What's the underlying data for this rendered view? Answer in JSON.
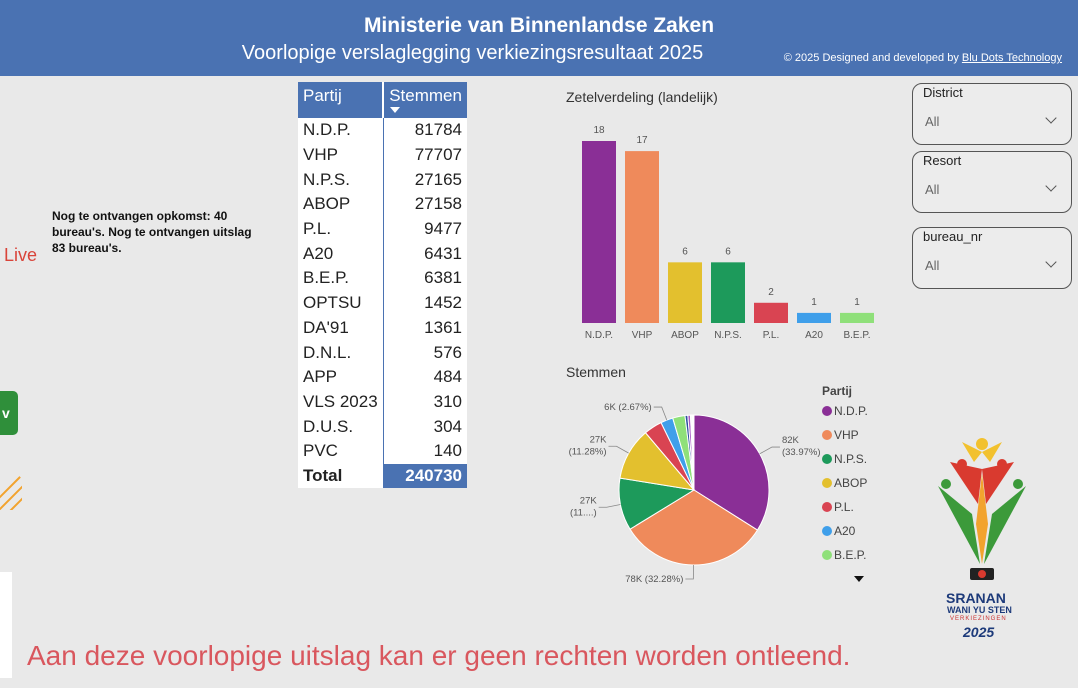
{
  "header": {
    "title": "Ministerie van Binnenlandse Zaken",
    "subtitle": "Voorlopige verslaglegging verkiezingsresultaat 2025",
    "copyright_prefix": "© 2025 Designed and developed by ",
    "copyright_link": "Blu Dots Technology"
  },
  "side_note": "Nog te ontvangen opkomst: 40 bureau's. Nog te ontvangen uitslag 83 bureau's.",
  "live_label": "Live",
  "green_button_label": "v",
  "disclaimer": "Aan deze voorlopige uitslag kan er geen rechten worden ontleend.",
  "table": {
    "col_party": "Partij",
    "col_votes": "Stemmen",
    "rows": [
      {
        "party": "N.D.P.",
        "votes": "81784"
      },
      {
        "party": "VHP",
        "votes": "77707"
      },
      {
        "party": "N.P.S.",
        "votes": "27165"
      },
      {
        "party": "ABOP",
        "votes": "27158"
      },
      {
        "party": "P.L.",
        "votes": "9477"
      },
      {
        "party": "A20",
        "votes": "6431"
      },
      {
        "party": "B.E.P.",
        "votes": "6381"
      },
      {
        "party": "OPTSU",
        "votes": "1452"
      },
      {
        "party": "DA'91",
        "votes": "1361"
      },
      {
        "party": "D.N.L.",
        "votes": "576"
      },
      {
        "party": "APP",
        "votes": "484"
      },
      {
        "party": "VLS 2023",
        "votes": "310"
      },
      {
        "party": "D.U.S.",
        "votes": "304"
      },
      {
        "party": "PVC",
        "votes": "140"
      }
    ],
    "total_label": "Total",
    "total_value": "240730"
  },
  "slicers": [
    {
      "label": "District",
      "value": "All"
    },
    {
      "label": "Resort",
      "value": "All"
    },
    {
      "label": "bureau_nr",
      "value": "All"
    }
  ],
  "chart_data": [
    {
      "type": "bar",
      "title": "Zetelverdeling (landelijk)",
      "categories": [
        "N.D.P.",
        "VHP",
        "ABOP",
        "N.P.S.",
        "P.L.",
        "A20",
        "B.E.P."
      ],
      "values": [
        18,
        17,
        6,
        6,
        2,
        1,
        1
      ],
      "colors": [
        "#8a2f96",
        "#ef8a5b",
        "#e3c02e",
        "#1d9a5b",
        "#d94452",
        "#3f9fea",
        "#8fe07a"
      ],
      "ylim": [
        0,
        18
      ]
    },
    {
      "type": "pie",
      "title": "Stemmen",
      "legend_title": "Partij",
      "categories": [
        "N.D.P.",
        "VHP",
        "N.P.S.",
        "ABOP",
        "P.L.",
        "A20",
        "B.E.P.",
        "OPTSU",
        "DA'91",
        "D.N.L.",
        "APP",
        "VLS 2023",
        "D.U.S.",
        "PVC"
      ],
      "values": [
        81784,
        77707,
        27165,
        27158,
        9477,
        6431,
        6381,
        1452,
        1361,
        576,
        484,
        310,
        304,
        140
      ],
      "colors": [
        "#8a2f96",
        "#ef8a5b",
        "#1d9a5b",
        "#e3c02e",
        "#d94452",
        "#3f9fea",
        "#8fe07a",
        "#2d4fa0",
        "#a85dc4",
        "#6b6b6b",
        "#c7a43a",
        "#3a6c8f",
        "#b03a75",
        "#2f2f2f"
      ],
      "legend_visible": [
        "N.D.P.",
        "VHP",
        "N.P.S.",
        "ABOP",
        "P.L.",
        "A20",
        "B.E.P."
      ],
      "data_labels": [
        {
          "slice": "N.D.P.",
          "line1": "82K",
          "line2": "(33.97%)"
        },
        {
          "slice": "VHP",
          "line1": "78K (32.28%)",
          "line2": ""
        },
        {
          "slice": "N.P.S.",
          "line1": "27K",
          "line2": "(11....)"
        },
        {
          "slice": "ABOP",
          "line1": "27K",
          "line2": "(11.28%)"
        },
        {
          "slice": "A20",
          "line1": "6K (2.67%)",
          "line2": ""
        }
      ]
    }
  ],
  "logo": {
    "line1": "SRANAN",
    "line2": "WANI YU STEN",
    "line3": "VERKIEZINGEN",
    "line4": "2025"
  }
}
